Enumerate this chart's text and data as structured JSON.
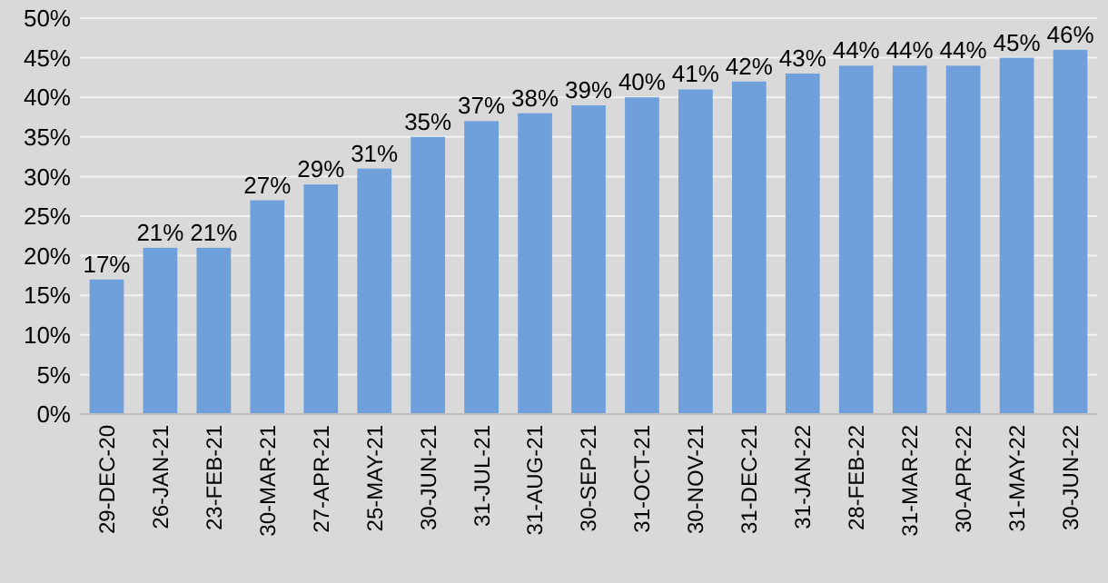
{
  "chart_data": {
    "type": "bar",
    "categories": [
      "29-DEC-20",
      "26-JAN-21",
      "23-FEB-21",
      "30-MAR-21",
      "27-APR-21",
      "25-MAY-21",
      "30-JUN-21",
      "31-JUL-21",
      "31-AUG-21",
      "30-SEP-21",
      "31-OCT-21",
      "30-NOV-21",
      "31-DEC-21",
      "31-JAN-22",
      "28-FEB-22",
      "31-MAR-22",
      "30-APR-22",
      "31-MAY-22",
      "30-JUN-22"
    ],
    "values": [
      17,
      21,
      21,
      27,
      29,
      31,
      35,
      37,
      38,
      39,
      40,
      41,
      42,
      43,
      44,
      44,
      44,
      45,
      46
    ],
    "value_labels": [
      "17%",
      "21%",
      "21%",
      "27%",
      "29%",
      "31%",
      "35%",
      "37%",
      "38%",
      "39%",
      "40%",
      "41%",
      "42%",
      "43%",
      "44%",
      "44%",
      "44%",
      "45%",
      "46%"
    ],
    "color": "#6fa0dc",
    "ylim": [
      0,
      50
    ],
    "yticks": [
      {
        "value": 0,
        "label": "0%"
      },
      {
        "value": 5,
        "label": "5%"
      },
      {
        "value": 10,
        "label": "10%"
      },
      {
        "value": 15,
        "label": "15%"
      },
      {
        "value": 20,
        "label": "20%"
      },
      {
        "value": 25,
        "label": "25%"
      },
      {
        "value": 30,
        "label": "30%"
      },
      {
        "value": 35,
        "label": "35%"
      },
      {
        "value": 40,
        "label": "40%"
      },
      {
        "value": 45,
        "label": "45%"
      },
      {
        "value": 50,
        "label": "50%"
      }
    ],
    "grid": "y"
  }
}
